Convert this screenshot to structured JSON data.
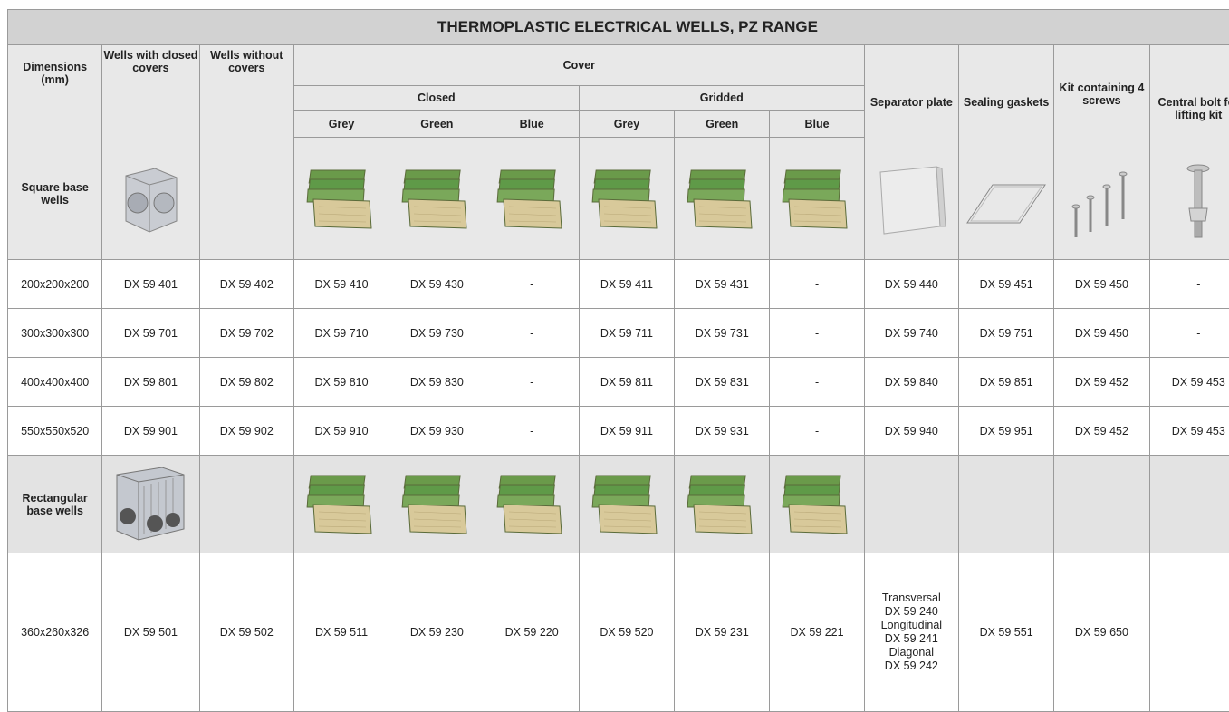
{
  "title": "THERMOPLASTIC ELECTRICAL WELLS, PZ RANGE",
  "headers": {
    "dimensions": "Dimensions (mm)",
    "closed_wells": "Wells with closed covers",
    "open_wells": "Wells without covers",
    "cover": "Cover",
    "cover_closed": "Closed",
    "cover_gridded": "Gridded",
    "colors": [
      "Grey",
      "Green",
      "Blue",
      "Grey",
      "Green",
      "Blue"
    ],
    "separator": "Separator plate",
    "gaskets": "Sealing gaskets",
    "kit": "Kit containing 4 screws",
    "bolt": "Central bolt for lifting kit"
  },
  "sections": [
    {
      "label": "Square base wells",
      "rows": [
        [
          "200x200x200",
          "DX 59 401",
          "DX 59 402",
          "DX 59 410",
          "DX 59 430",
          "-",
          "DX 59 411",
          "DX 59 431",
          "-",
          "DX 59 440",
          "DX 59 451",
          "DX 59 450",
          "-"
        ],
        [
          "300x300x300",
          "DX 59 701",
          "DX 59 702",
          "DX 59 710",
          "DX 59 730",
          "-",
          "DX 59 711",
          "DX 59 731",
          "-",
          "DX 59 740",
          "DX 59 751",
          "DX 59 450",
          "-"
        ],
        [
          "400x400x400",
          "DX 59 801",
          "DX 59 802",
          "DX 59 810",
          "DX 59 830",
          "-",
          "DX 59 811",
          "DX 59 831",
          "-",
          "DX 59 840",
          "DX 59 851",
          "DX 59 452",
          "DX 59 453"
        ],
        [
          "550x550x520",
          "DX 59 901",
          "DX 59 902",
          "DX 59 910",
          "DX 59 930",
          "-",
          "DX 59 911",
          "DX 59 931",
          "-",
          "DX 59 940",
          "DX 59 951",
          "DX 59 452",
          "DX 59 453"
        ]
      ]
    },
    {
      "label": "Rectangular base wells",
      "rows": [
        [
          "360x260x326",
          "DX 59 501",
          "DX 59 502",
          "DX 59 511",
          "DX 59 230",
          "DX 59 220",
          "DX 59 520",
          "DX 59 231",
          "DX 59 221",
          [
            "Transversal",
            "DX 59 240",
            "Longitudinal",
            "DX 59 241",
            "Diagonal",
            "DX 59 242"
          ],
          "DX 59 551",
          "DX 59 650",
          null
        ]
      ]
    }
  ]
}
